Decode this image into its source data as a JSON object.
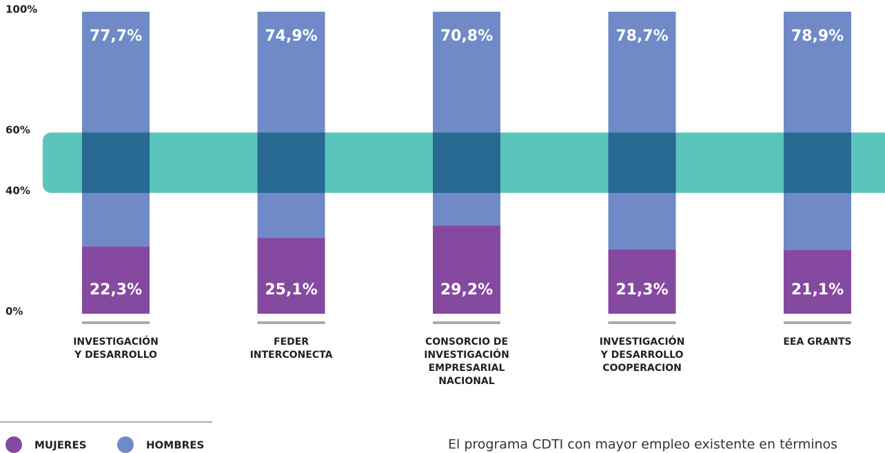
{
  "chart_data": {
    "type": "stacked_bar",
    "categories": [
      [
        "INVESTIGACIÓN",
        "Y DESARROLLO"
      ],
      [
        "FEDER",
        "INTERCONECTA"
      ],
      [
        "CONSORCIO DE",
        "INVESTIGACIÓN",
        "EMPRESARIAL",
        "NACIONAL"
      ],
      [
        "INVESTIGACIÓN",
        "Y DESARROLLO",
        "COOPERACION"
      ],
      [
        "EEA GRANTS"
      ]
    ],
    "series": [
      {
        "name": "MUJERES",
        "color": "#8549a0",
        "values": [
          22.3,
          25.1,
          29.2,
          21.3,
          21.1
        ],
        "value_labels": [
          "22,3%",
          "25,1%",
          "29,2%",
          "21,3%",
          "21,1%"
        ]
      },
      {
        "name": "HOMBRES",
        "color": "#6f8ac6",
        "values": [
          77.7,
          74.9,
          70.8,
          78.7,
          78.9
        ],
        "value_labels": [
          "77,7%",
          "74,9%",
          "70,8%",
          "78,7%",
          "78,9%"
        ]
      }
    ],
    "ylim": [
      0,
      100
    ],
    "yticks": [
      {
        "value": 0,
        "label": "0%"
      },
      {
        "value": 40,
        "label": "40%"
      },
      {
        "value": 60,
        "label": "60%"
      },
      {
        "value": 100,
        "label": "100%"
      }
    ],
    "highlight_band": {
      "range": [
        40,
        60
      ],
      "color": "#5bc4bb"
    },
    "note": "El programa CDTI con mayor empleo existente en términos"
  }
}
